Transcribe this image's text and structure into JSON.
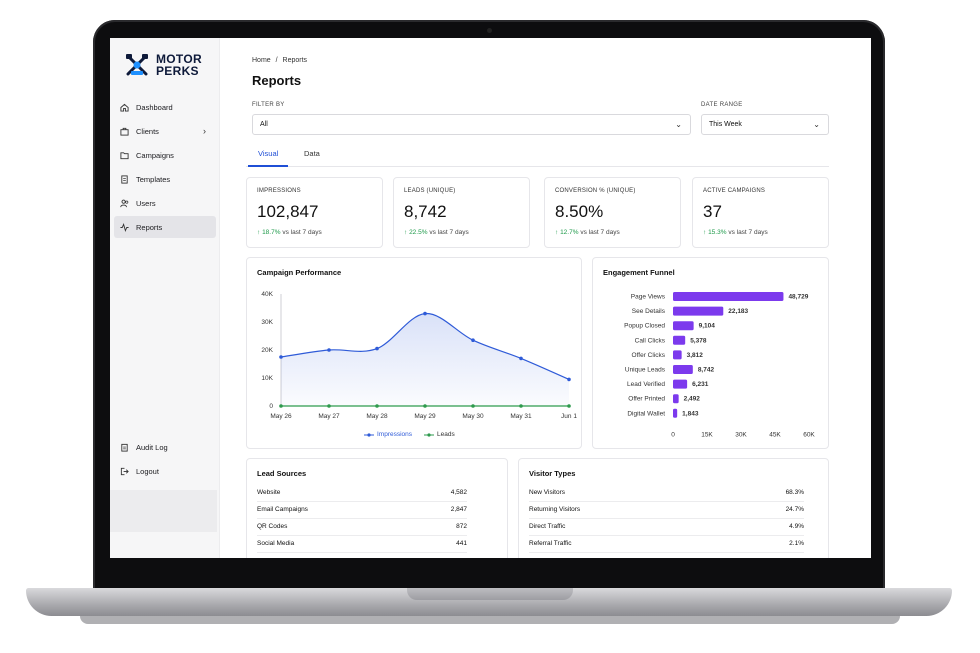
{
  "brand": {
    "line1": "MOTOR",
    "line2": "PERKS"
  },
  "sidebar": {
    "items": [
      {
        "label": "Dashboard",
        "icon": "home-icon"
      },
      {
        "label": "Clients",
        "icon": "briefcase-icon"
      },
      {
        "label": "Campaigns",
        "icon": "folder-icon"
      },
      {
        "label": "Templates",
        "icon": "document-icon"
      },
      {
        "label": "Users",
        "icon": "users-icon"
      },
      {
        "label": "Reports",
        "icon": "activity-icon"
      }
    ],
    "bottom": [
      {
        "label": "Audit Log",
        "icon": "clipboard-icon"
      },
      {
        "label": "Logout",
        "icon": "logout-icon"
      }
    ]
  },
  "breadcrumb": {
    "home": "Home",
    "sep": "/",
    "current": "Reports"
  },
  "page_title": "Reports",
  "filter": {
    "label": "FILTER BY",
    "value": "All"
  },
  "date_range": {
    "label": "DATE RANGE",
    "value": "This Week"
  },
  "tabs": [
    {
      "label": "Visual"
    },
    {
      "label": "Data"
    }
  ],
  "kpis": [
    {
      "label": "IMPRESSIONS",
      "value": "102,847",
      "delta": "18.7%",
      "suffix": "vs last 7 days"
    },
    {
      "label": "LEADS (UNIQUE)",
      "value": "8,742",
      "delta": "22.5%",
      "suffix": "vs last 7 days"
    },
    {
      "label": "CONVERSION % (UNIQUE)",
      "value": "8.50%",
      "delta": "12.7%",
      "suffix": "vs last 7 days"
    },
    {
      "label": "ACTIVE CAMPAIGNS",
      "value": "37",
      "delta": "15.3%",
      "suffix": "vs last 7 days"
    }
  ],
  "campaign_chart": {
    "title": "Campaign Performance",
    "chart_data": {
      "type": "line",
      "x": [
        "May 26",
        "May 27",
        "May 28",
        "May 29",
        "May 30",
        "May 31",
        "Jun 1"
      ],
      "y_ticks": [
        "40K",
        "30K",
        "20K",
        "10K",
        "0"
      ],
      "ylim": [
        0,
        40000
      ],
      "series": [
        {
          "name": "Impressions",
          "values": [
            17500,
            20000,
            20500,
            33000,
            23500,
            17000,
            9500
          ],
          "color": "#2f5bd8"
        },
        {
          "name": "Leads",
          "values": [
            0,
            0,
            0,
            0,
            0,
            0,
            0
          ],
          "color": "#2e9a4d"
        }
      ],
      "legend": "bottom-center"
    }
  },
  "funnel_chart": {
    "title": "Engagement Funnel",
    "chart_data": {
      "type": "bar",
      "orientation": "horizontal",
      "categories": [
        "Page Views",
        "See Details",
        "Popup Closed",
        "Call Clicks",
        "Offer Clicks",
        "Unique Leads",
        "Lead Verified",
        "Offer Printed",
        "Digital Wallet"
      ],
      "values": [
        48729,
        22183,
        9104,
        5378,
        3812,
        8742,
        6231,
        2492,
        1843
      ],
      "labels": [
        "48,729",
        "22,183",
        "9,104",
        "5,378",
        "3,812",
        "8,742",
        "6,231",
        "2,492",
        "1,843"
      ],
      "x_ticks": [
        "0",
        "15K",
        "30K",
        "45K",
        "60K"
      ],
      "xlim": [
        0,
        60000
      ],
      "color": "#7c3aed"
    }
  },
  "lead_sources": {
    "title": "Lead Sources",
    "rows": [
      {
        "name": "Website",
        "value": "4,582"
      },
      {
        "name": "Email Campaigns",
        "value": "2,847"
      },
      {
        "name": "QR Codes",
        "value": "872"
      },
      {
        "name": "Social Media",
        "value": "441"
      }
    ]
  },
  "visitor_types": {
    "title": "Visitor Types",
    "rows": [
      {
        "name": "New Visitors",
        "value": "68.3%"
      },
      {
        "name": "Returning Visitors",
        "value": "24.7%"
      },
      {
        "name": "Direct Traffic",
        "value": "4.9%"
      },
      {
        "name": "Referral Traffic",
        "value": "2.1%"
      }
    ]
  }
}
